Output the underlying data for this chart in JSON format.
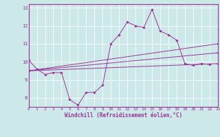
{
  "background_color": "#cce8e8",
  "grid_color": "#ffffff",
  "line_color": "#993399",
  "marker_color": "#993399",
  "xlabel": "Windchill (Refroidissement éolien,°C)",
  "xlim": [
    0,
    23
  ],
  "ylim": [
    7.5,
    13.2
  ],
  "yticks": [
    8,
    9,
    10,
    11,
    12,
    13
  ],
  "xticks": [
    0,
    1,
    2,
    3,
    4,
    5,
    6,
    7,
    8,
    9,
    10,
    11,
    12,
    13,
    14,
    15,
    16,
    17,
    18,
    19,
    20,
    21,
    22,
    23
  ],
  "series": [
    {
      "x": [
        0,
        1,
        2,
        3,
        4,
        5,
        6,
        7,
        8,
        9,
        10,
        11,
        12,
        13,
        14,
        15,
        16,
        17,
        18,
        19,
        20,
        21,
        22
      ],
      "y": [
        10.1,
        9.6,
        9.3,
        9.4,
        9.4,
        7.9,
        7.6,
        8.3,
        8.3,
        8.7,
        11.0,
        11.5,
        12.2,
        12.0,
        11.9,
        12.9,
        11.7,
        11.5,
        11.2,
        9.9,
        9.8,
        9.9,
        9.85
      ]
    },
    {
      "x": [
        0,
        23
      ],
      "y": [
        9.5,
        9.9
      ]
    },
    {
      "x": [
        0,
        23
      ],
      "y": [
        9.5,
        11.0
      ]
    },
    {
      "x": [
        0,
        23
      ],
      "y": [
        9.5,
        10.5
      ]
    }
  ]
}
